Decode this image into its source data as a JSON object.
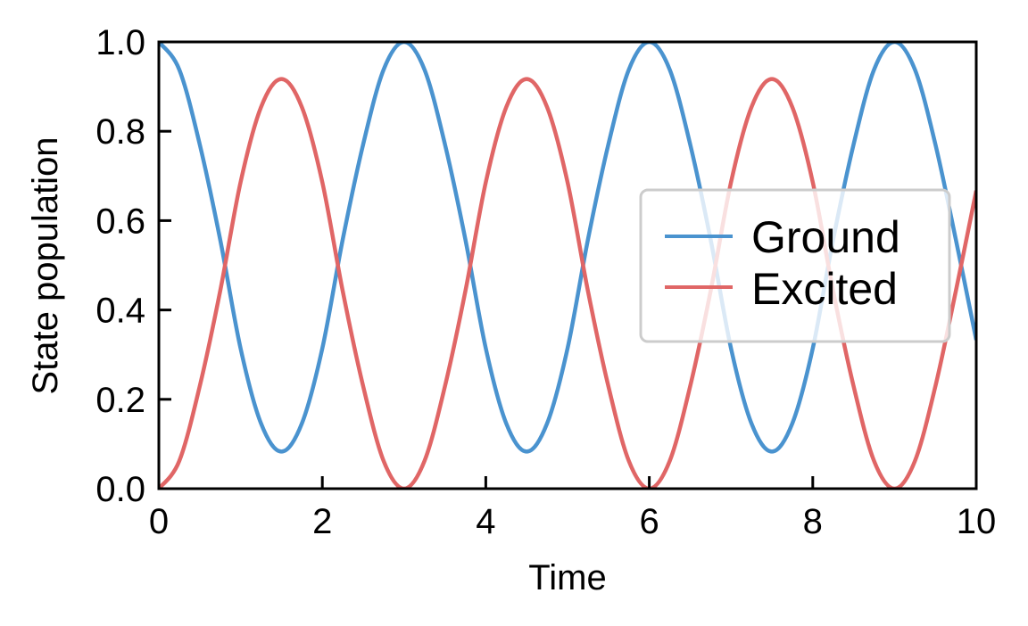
{
  "chart_data": {
    "type": "line",
    "title": "",
    "xlabel": "Time",
    "ylabel": "State population",
    "xlim": [
      0,
      10
    ],
    "ylim": [
      0,
      1
    ],
    "xticks": [
      0,
      2,
      4,
      6,
      8,
      10
    ],
    "yticks": [
      0.0,
      0.2,
      0.4,
      0.6,
      0.8,
      1.0
    ],
    "xtick_labels": [
      "0",
      "2",
      "4",
      "6",
      "8",
      "10"
    ],
    "ytick_labels": [
      "0.0",
      "0.2",
      "0.4",
      "0.6",
      "0.8",
      "1.0"
    ],
    "grid": false,
    "legend_position": "center-right",
    "series": [
      {
        "name": "Ground",
        "color": "#4a93cf",
        "x": [
          0,
          0.25,
          0.5,
          0.75,
          1.0,
          1.25,
          1.5,
          1.75,
          2.0,
          2.25,
          2.5,
          2.75,
          3.0,
          3.25,
          3.5,
          3.75,
          4.0,
          4.25,
          4.5,
          4.75,
          5.0,
          5.25,
          5.5,
          5.75,
          6.0,
          6.25,
          6.5,
          6.75,
          7.0,
          7.25,
          7.5,
          7.75,
          8.0,
          8.25,
          8.5,
          8.75,
          9.0,
          9.25,
          9.5,
          9.75,
          10.0
        ],
        "y": [
          1.0,
          0.938,
          0.771,
          0.558,
          0.314,
          0.146,
          0.083,
          0.146,
          0.314,
          0.558,
          0.771,
          0.938,
          1.0,
          0.938,
          0.771,
          0.558,
          0.314,
          0.146,
          0.083,
          0.146,
          0.314,
          0.558,
          0.771,
          0.938,
          1.0,
          0.938,
          0.771,
          0.558,
          0.314,
          0.146,
          0.083,
          0.146,
          0.314,
          0.558,
          0.771,
          0.938,
          1.0,
          0.938,
          0.771,
          0.558,
          0.333
        ]
      },
      {
        "name": "Excited",
        "color": "#e06666",
        "x": [
          0,
          0.25,
          0.5,
          0.75,
          1.0,
          1.25,
          1.5,
          1.75,
          2.0,
          2.25,
          2.5,
          2.75,
          3.0,
          3.25,
          3.5,
          3.75,
          4.0,
          4.25,
          4.5,
          4.75,
          5.0,
          5.25,
          5.5,
          5.75,
          6.0,
          6.25,
          6.5,
          6.75,
          7.0,
          7.25,
          7.5,
          7.75,
          8.0,
          8.25,
          8.5,
          8.75,
          9.0,
          9.25,
          9.5,
          9.75,
          10.0
        ],
        "y": [
          0.0,
          0.062,
          0.229,
          0.442,
          0.686,
          0.854,
          0.917,
          0.854,
          0.686,
          0.442,
          0.229,
          0.062,
          0.0,
          0.062,
          0.229,
          0.442,
          0.686,
          0.854,
          0.917,
          0.854,
          0.686,
          0.442,
          0.229,
          0.062,
          0.0,
          0.062,
          0.229,
          0.442,
          0.686,
          0.854,
          0.917,
          0.854,
          0.686,
          0.442,
          0.229,
          0.062,
          0.0,
          0.062,
          0.229,
          0.442,
          0.667
        ]
      }
    ]
  }
}
